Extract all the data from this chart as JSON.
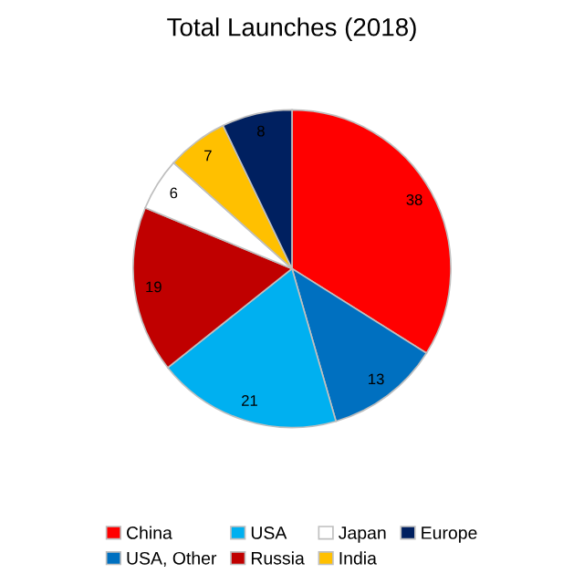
{
  "chart_data": {
    "type": "pie",
    "title": "Total Launches (2018)",
    "categories": [
      "China",
      "USA, Other",
      "USA",
      "Russia",
      "Japan",
      "India",
      "Europe"
    ],
    "values": [
      38,
      13,
      21,
      19,
      6,
      7,
      8
    ],
    "colors": [
      "#ff0000",
      "#0070c0",
      "#00b0f0",
      "#c00000",
      "#ffffff",
      "#ffc000",
      "#002060"
    ],
    "data_labels": true,
    "legend": "bottom"
  }
}
